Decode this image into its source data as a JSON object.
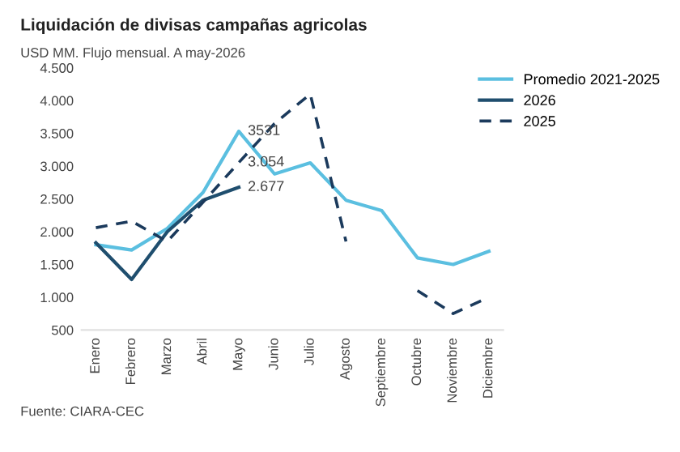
{
  "chart_data": {
    "type": "line",
    "title": "Liquidación de divisas campañas agricolas",
    "subtitle": "USD MM. Flujo mensual. A may-2026",
    "categories": [
      "Enero",
      "Febrero",
      "Marzo",
      "Abril",
      "Mayo",
      "Junio",
      "Julio",
      "Agosto",
      "Septiembre",
      "Octubre",
      "Noviembre",
      "Diciembre"
    ],
    "series": [
      {
        "name": "Promedio 2021-2025",
        "color": "#5bbfe0",
        "line_style": "solid",
        "values": [
          1800,
          1720,
          2050,
          2600,
          3531,
          2880,
          3050,
          2480,
          2320,
          1600,
          1500,
          1700
        ],
        "value_labels": [
          null,
          null,
          null,
          null,
          "3531",
          null,
          null,
          null,
          null,
          null,
          null,
          null
        ]
      },
      {
        "name": "2026",
        "color": "#1f4e6e",
        "line_style": "solid",
        "values": [
          1830,
          1270,
          2000,
          2480,
          2677,
          null,
          null,
          null,
          null,
          null,
          null,
          null
        ],
        "value_labels": [
          null,
          null,
          null,
          null,
          "2.677",
          null,
          null,
          null,
          null,
          null,
          null,
          null
        ]
      },
      {
        "name": "2025",
        "color": "#1b3a5c",
        "line_style": "dashed",
        "values": [
          2060,
          2160,
          1850,
          2450,
          3054,
          3650,
          4100,
          1850,
          null,
          1100,
          750,
          1000
        ],
        "value_labels": [
          null,
          null,
          null,
          null,
          "3.054",
          null,
          null,
          null,
          null,
          null,
          null,
          null
        ]
      }
    ],
    "ylim": [
      500,
      4500
    ],
    "yticks": [
      {
        "value": 500,
        "label": "500"
      },
      {
        "value": 1000,
        "label": "1.000"
      },
      {
        "value": 1500,
        "label": "1.500"
      },
      {
        "value": 2000,
        "label": "2.000"
      },
      {
        "value": 2500,
        "label": "2.500"
      },
      {
        "value": 3000,
        "label": "3.000"
      },
      {
        "value": 3500,
        "label": "3.500"
      },
      {
        "value": 4000,
        "label": "4.000"
      },
      {
        "value": 4500,
        "label": "4.500"
      }
    ],
    "grid": false,
    "legend": "top right",
    "marker": "none",
    "annotations": [
      "Fuente: CIARA-CEC"
    ]
  }
}
